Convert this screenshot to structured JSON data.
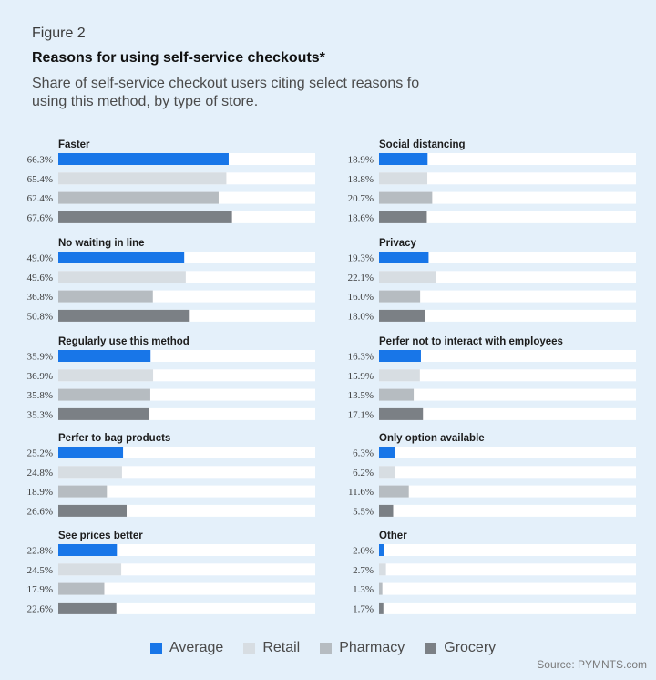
{
  "figure_label": "Figure 2",
  "title": "Reasons  for using self-service checkouts*",
  "subtitle": "Share of self-service checkout users citing select reasons fo using this method, by type of store.",
  "source": "Source: PYMNTS.com",
  "legend": [
    {
      "name": "Average",
      "color": "#1876e8"
    },
    {
      "name": "Retail",
      "color": "#d7dde2"
    },
    {
      "name": "Pharmacy",
      "color": "#b6bcc1"
    },
    {
      "name": "Grocery",
      "color": "#7b8085"
    }
  ],
  "chart_data": {
    "type": "bar",
    "orientation": "horizontal",
    "series": [
      "Average",
      "Retail",
      "Pharmacy",
      "Grocery"
    ],
    "xlim": [
      0,
      100
    ],
    "value_suffix": "%",
    "panels": [
      {
        "title": "Faster",
        "values": [
          66.3,
          65.4,
          62.4,
          67.6
        ],
        "labels": [
          "66.3%",
          "65.4%",
          "62.4%",
          "67.6%"
        ]
      },
      {
        "title": "No waiting in line",
        "values": [
          49.0,
          49.6,
          36.8,
          50.8
        ],
        "labels": [
          "49.0%",
          "49.6%",
          "36.8%",
          "50.8%"
        ]
      },
      {
        "title": "Regularly use this method",
        "values": [
          35.9,
          36.9,
          35.8,
          35.3
        ],
        "labels": [
          "35.9%",
          "36.9%",
          "35.8%",
          "35.3%"
        ]
      },
      {
        "title": "Perfer to bag products",
        "values": [
          25.2,
          24.8,
          18.9,
          26.6
        ],
        "labels": [
          "25.2%",
          "24.8%",
          "18.9%",
          "26.6%"
        ]
      },
      {
        "title": "See prices better",
        "values": [
          22.8,
          24.5,
          17.9,
          22.6
        ],
        "labels": [
          "22.8%",
          "24.5%",
          "17.9%",
          "22.6%"
        ]
      },
      {
        "title": "Social distancing",
        "values": [
          18.9,
          18.8,
          20.7,
          18.6
        ],
        "labels": [
          "18.9%",
          "18.8%",
          "20.7%",
          "18.6%"
        ]
      },
      {
        "title": "Privacy",
        "values": [
          19.3,
          22.1,
          16.0,
          18.0
        ],
        "labels": [
          "19.3%",
          "22.1%",
          "16.0%",
          "18.0%"
        ]
      },
      {
        "title": "Perfer not to interact with employees",
        "values": [
          16.3,
          15.9,
          13.5,
          17.1
        ],
        "labels": [
          "16.3%",
          "15.9%",
          "13.5%",
          "17.1%"
        ]
      },
      {
        "title": "Only option available",
        "values": [
          6.3,
          6.2,
          11.6,
          5.5
        ],
        "labels": [
          "6.3%",
          "6.2%",
          "11.6%",
          "5.5%"
        ]
      },
      {
        "title": "Other",
        "values": [
          2.0,
          2.7,
          1.3,
          1.7
        ],
        "labels": [
          "2.0%",
          "2.7%",
          "1.3%",
          "1.7%"
        ]
      }
    ]
  }
}
